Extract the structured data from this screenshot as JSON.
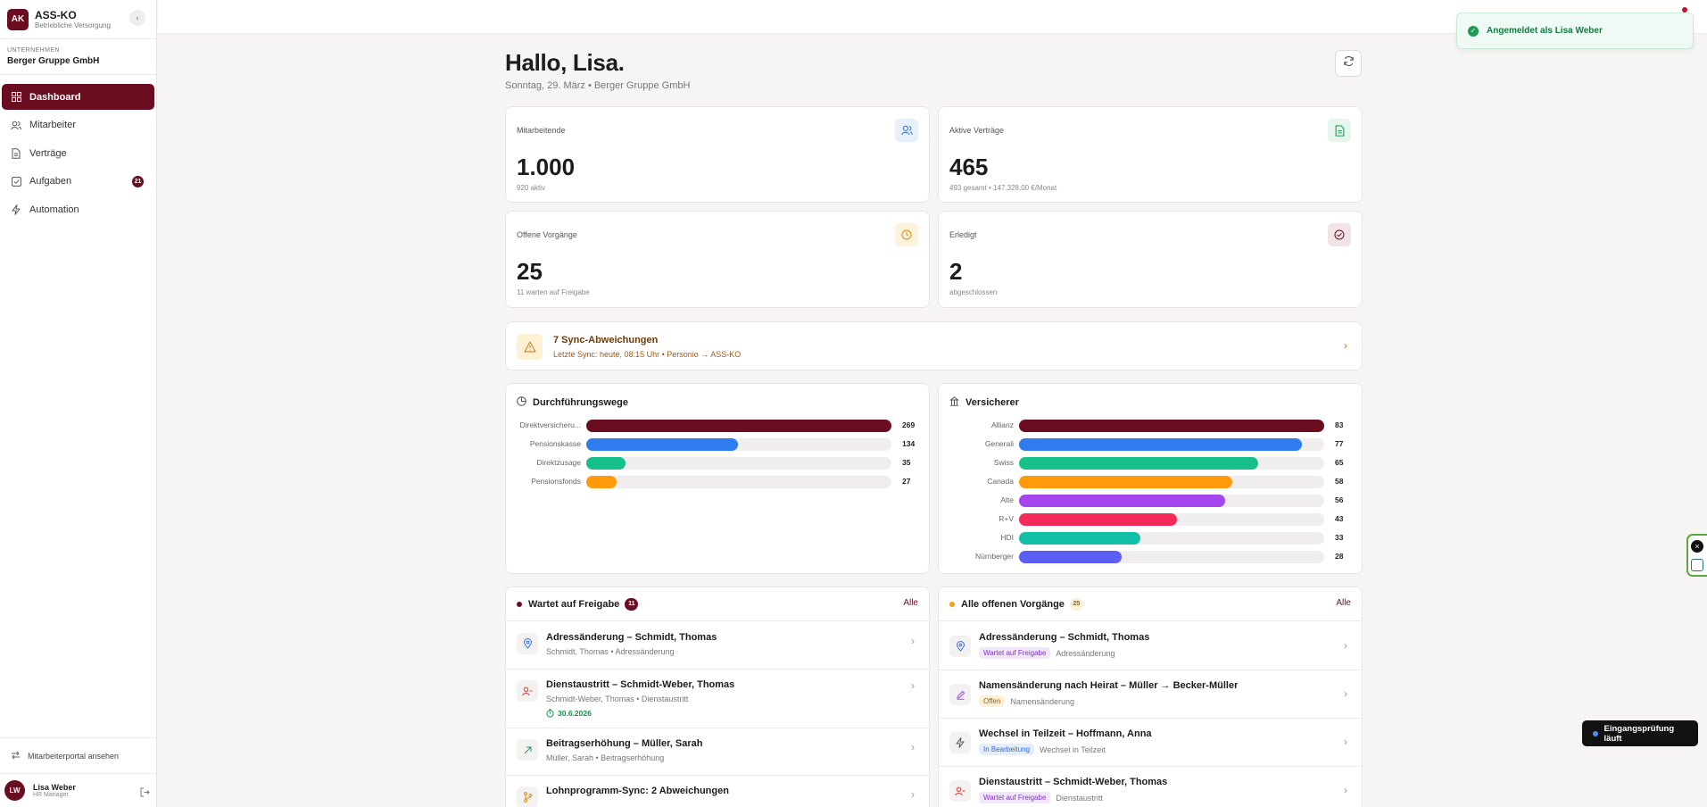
{
  "sidebar": {
    "logo": "AK",
    "app_name": "ASS-KO",
    "app_sub": "Betriebliche Versorgung",
    "company_label": "UNTERNEHMEN",
    "company_name": "Berger Gruppe GmbH",
    "nav": [
      {
        "label": "Dashboard",
        "icon": "grid-icon",
        "active": true
      },
      {
        "label": "Mitarbeiter",
        "icon": "users-icon"
      },
      {
        "label": "Verträge",
        "icon": "document-icon"
      },
      {
        "label": "Aufgaben",
        "icon": "checkbox-icon",
        "badge": "21"
      },
      {
        "label": "Automation",
        "icon": "bolt-icon"
      }
    ],
    "portal_link": "Mitarbeiterportal ansehen",
    "user": {
      "initials": "LW",
      "name": "Lisa Weber",
      "role": "HR Manager"
    }
  },
  "toast": {
    "text": "Angemeldet als Lisa Weber",
    "color": "#167a43"
  },
  "header": {
    "greeting": "Hallo, Lisa.",
    "subline": "Sonntag, 29. März • Berger Gruppe GmbH"
  },
  "stats": [
    {
      "label": "Mitarbeitende",
      "value": "1.000",
      "sub": "920 aktiv",
      "icon": "users-icon",
      "color": "#3a6fd8"
    },
    {
      "label": "Aktive Verträge",
      "value": "465",
      "sub": "493 gesamt • 147.328,00 €/Monat",
      "icon": "document-icon",
      "color": "#1a9a53"
    },
    {
      "label": "Offene Vorgänge",
      "value": "25",
      "sub": "11 warten auf Freigabe",
      "icon": "clock-icon",
      "color": "#e08a0b"
    },
    {
      "label": "Erledigt",
      "value": "2",
      "sub": "abgeschlossen",
      "icon": "check-circle-icon",
      "color": "#6b0d20"
    }
  ],
  "alert": {
    "title": "7 Sync-Abweichungen",
    "sub": "Letzte Sync: heute, 08:15 Uhr • Personio → ASS-KO"
  },
  "chart_data": [
    {
      "type": "bar",
      "title": "Durchführungswege",
      "categories": [
        "Direktversicheru...",
        "Pensionskasse",
        "Direktzusage",
        "Pensionsfonds"
      ],
      "values": [
        269,
        134,
        35,
        27
      ],
      "colors": [
        "#6b0d20",
        "#2f7bf0",
        "#16c08a",
        "#ff9a0a"
      ],
      "xlim": [
        0,
        269
      ]
    },
    {
      "type": "bar",
      "title": "Versicherer",
      "categories": [
        "Allianz",
        "Generali",
        "Swiss",
        "Canada",
        "Alte",
        "R+V",
        "HDI",
        "Nürnberger"
      ],
      "values": [
        83,
        77,
        65,
        58,
        56,
        43,
        33,
        28
      ],
      "colors": [
        "#6b0d20",
        "#2f7bf0",
        "#16c08a",
        "#ff9a0a",
        "#a445f0",
        "#f52a5c",
        "#12bfa7",
        "#5a5ef5"
      ],
      "xlim": [
        0,
        83
      ]
    }
  ],
  "pending": {
    "title": "Wartet auf Freigabe",
    "count": "11",
    "all": "Alle",
    "rows": [
      {
        "title": "Adressänderung – Schmidt, Thomas",
        "sub": "Schmidt, Thomas • Adressänderung",
        "icon": "location-icon",
        "color": "#3a6fd8"
      },
      {
        "title": "Dienstaustritt – Schmidt-Weber, Thomas",
        "sub": "Schmidt-Weber, Thomas • Dienstaustritt",
        "date": "30.6.2026",
        "icon": "user-minus-icon",
        "color": "#d83a3a"
      },
      {
        "title": "Beitragserhöhung – Müller, Sarah",
        "sub": "Müller, Sarah • Beitragserhöhung",
        "icon": "trend-up-icon",
        "color": "#1a9a53"
      },
      {
        "title": "Lohnprogramm-Sync: 2 Abweichungen",
        "sub": "",
        "icon": "branch-icon",
        "color": "#e08a0b"
      }
    ]
  },
  "open": {
    "title": "Alle offenen Vorgänge",
    "count": "25",
    "all": "Alle",
    "rows": [
      {
        "title": "Adressänderung – Schmidt, Thomas",
        "pill": "Wartet auf Freigabe",
        "pill_bg": "#f1e6fb",
        "pill_fg": "#8a2fc8",
        "tag": "Adressänderung",
        "icon": "location-icon",
        "color": "#3a6fd8"
      },
      {
        "title": "Namensänderung nach Heirat – Müller → Becker-Müller",
        "pill": "Offen",
        "pill_bg": "#fdf1d4",
        "pill_fg": "#a05a12",
        "tag": "Namensänderung",
        "icon": "pencil-icon",
        "color": "#a445f0"
      },
      {
        "title": "Wechsel in Teilzeit – Hoffmann, Anna",
        "pill": "In Bearbeitung",
        "pill_bg": "#e3edfc",
        "pill_fg": "#2f6bd0",
        "tag": "Wechsel in Teilzeit",
        "icon": "bolt-icon",
        "color": "#555555"
      },
      {
        "title": "Dienstaustritt – Schmidt-Weber, Thomas",
        "pill": "Wartet auf Freigabe",
        "pill_bg": "#f1e6fb",
        "pill_fg": "#8a2fc8",
        "tag": "Dienstaustritt",
        "icon": "user-minus-icon",
        "color": "#d83a3a"
      }
    ]
  },
  "status_chip": "Eingangsprüfung läuft"
}
